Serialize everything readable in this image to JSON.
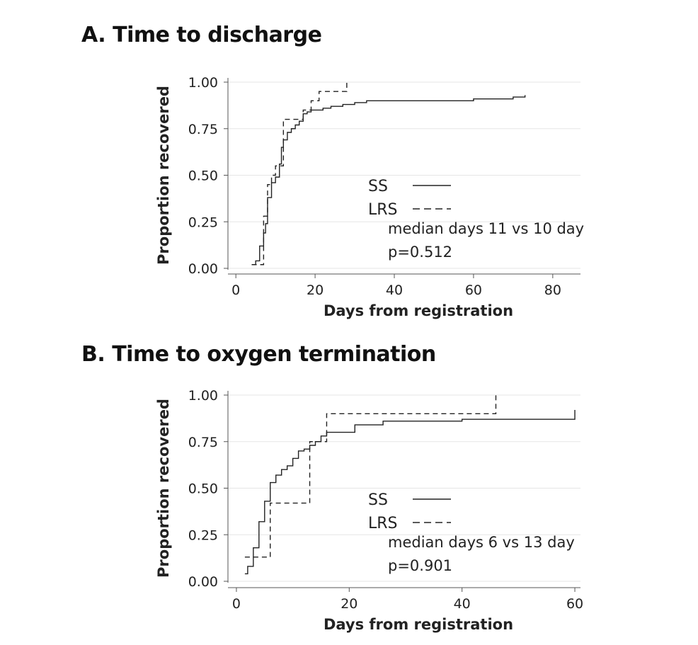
{
  "chart_data": [
    {
      "type": "line",
      "title": "A. Time to discharge",
      "xlabel": "Days from registration",
      "ylabel": "Proportion recovered",
      "xlim": [
        -2,
        87
      ],
      "ylim": [
        0,
        1
      ],
      "xticks": [
        0,
        20,
        40,
        60,
        80
      ],
      "xtick_labels": [
        "0",
        "20",
        "40",
        "60",
        "80"
      ],
      "yticks": [
        0,
        0.25,
        0.5,
        0.75,
        1.0
      ],
      "ytick_labels": [
        "0.00",
        "0.25",
        "0.50",
        "0.75",
        "1.00"
      ],
      "grid": true,
      "series": [
        {
          "name": "SS",
          "style": "solid",
          "x": [
            4,
            5,
            6,
            7,
            7.5,
            8,
            9,
            10,
            11,
            11.5,
            12,
            13,
            14,
            15,
            16,
            17,
            18,
            19,
            20,
            22,
            24,
            27,
            30,
            33,
            38,
            50,
            60,
            70,
            73
          ],
          "y": [
            0.02,
            0.04,
            0.12,
            0.19,
            0.24,
            0.38,
            0.46,
            0.49,
            0.56,
            0.65,
            0.69,
            0.73,
            0.75,
            0.77,
            0.79,
            0.83,
            0.84,
            0.85,
            0.85,
            0.86,
            0.87,
            0.88,
            0.89,
            0.9,
            0.9,
            0.9,
            0.91,
            0.92,
            0.93
          ]
        },
        {
          "name": "LRS",
          "style": "dashed",
          "x": [
            4,
            7,
            8,
            9,
            10,
            12,
            17,
            19,
            21,
            28
          ],
          "y": [
            0.02,
            0.28,
            0.45,
            0.5,
            0.55,
            0.8,
            0.85,
            0.9,
            0.95,
            1.0
          ]
        }
      ],
      "legend": {
        "placement": "center-right",
        "entries": [
          "SS",
          "LRS"
        ]
      },
      "annotations": [
        "median days 11 vs 10 day",
        "p=0.512"
      ]
    },
    {
      "type": "line",
      "title": "B. Time to oxygen termination",
      "xlabel": "Days from registration",
      "ylabel": "Proportion recovered",
      "xlim": [
        -1.5,
        61
      ],
      "ylim": [
        0,
        1
      ],
      "xticks": [
        0,
        20,
        40,
        60
      ],
      "xtick_labels": [
        "0",
        "20",
        "40",
        "60"
      ],
      "yticks": [
        0,
        0.25,
        0.5,
        0.75,
        1.0
      ],
      "ytick_labels": [
        "0.00",
        "0.25",
        "0.50",
        "0.75",
        "1.00"
      ],
      "grid": true,
      "series": [
        {
          "name": "SS",
          "style": "solid",
          "x": [
            1.5,
            2,
            3,
            4,
            5,
            6,
            7,
            8,
            9,
            10,
            11,
            12,
            13,
            14,
            15,
            16,
            18,
            21,
            26,
            40,
            60
          ],
          "y": [
            0.04,
            0.08,
            0.18,
            0.32,
            0.43,
            0.53,
            0.57,
            0.6,
            0.62,
            0.66,
            0.7,
            0.71,
            0.73,
            0.75,
            0.78,
            0.8,
            0.8,
            0.84,
            0.86,
            0.87,
            0.92
          ]
        },
        {
          "name": "LRS",
          "style": "dashed",
          "x": [
            1.5,
            6,
            13,
            16,
            46
          ],
          "y": [
            0.13,
            0.42,
            0.75,
            0.9,
            1.0
          ]
        }
      ],
      "legend": {
        "placement": "center-right",
        "entries": [
          "SS",
          "LRS"
        ]
      },
      "annotations": [
        "median days 6 vs 13 day",
        "p=0.901"
      ]
    }
  ]
}
